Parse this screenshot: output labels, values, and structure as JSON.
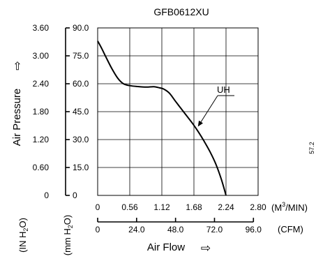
{
  "chart_data": {
    "type": "line",
    "title": "GFB0612XU",
    "ylabel": "Air Pressure",
    "ylabel_arrow": "⇨",
    "xlabel": "Air Flow",
    "xlabel_arrow": "⇨",
    "y_units": {
      "inh2o": "(IN H2O)",
      "mmh2o": "(mm H2O)"
    },
    "x_units": {
      "m3min": "(M3/MIN)",
      "cfm": "(CFM)"
    },
    "y_ticks_inh2o": [
      "3.60",
      "3.00",
      "2.40",
      "1.80",
      "1.20",
      "0.60",
      "0"
    ],
    "y_ticks_mmh2o": [
      "90.0",
      "75.0",
      "60.0",
      "45.0",
      "30.0",
      "15.0",
      "0"
    ],
    "x_ticks_m3min": [
      "0",
      "0.56",
      "1.12",
      "1.68",
      "2.24",
      "2.80"
    ],
    "x_ticks_cfm": [
      "0",
      "24.0",
      "48.0",
      "72.0",
      "96.0"
    ],
    "xlim_m3min": [
      0,
      2.8
    ],
    "ylim_mmh2o": [
      0,
      90
    ],
    "cfm_per_m3min": 35.315,
    "grid": true,
    "annotation": {
      "label": "UH",
      "x": 1.75,
      "y": 37
    },
    "stray_text": "57.2",
    "series": [
      {
        "name": "UH",
        "x": [
          0,
          0.07,
          0.15,
          0.25,
          0.35,
          0.45,
          0.56,
          0.7,
          0.85,
          0.98,
          1.08,
          1.15,
          1.25,
          1.36,
          1.46,
          1.56,
          1.66,
          1.76,
          1.86,
          1.96,
          2.06,
          2.16,
          2.24
        ],
        "y": [
          83,
          79,
          74,
          68,
          63,
          60,
          59,
          58.5,
          58.2,
          58.4,
          57.8,
          57.2,
          55,
          50.5,
          46.5,
          42.5,
          38.5,
          34,
          29,
          23.5,
          17,
          8.5,
          0
        ]
      }
    ]
  }
}
